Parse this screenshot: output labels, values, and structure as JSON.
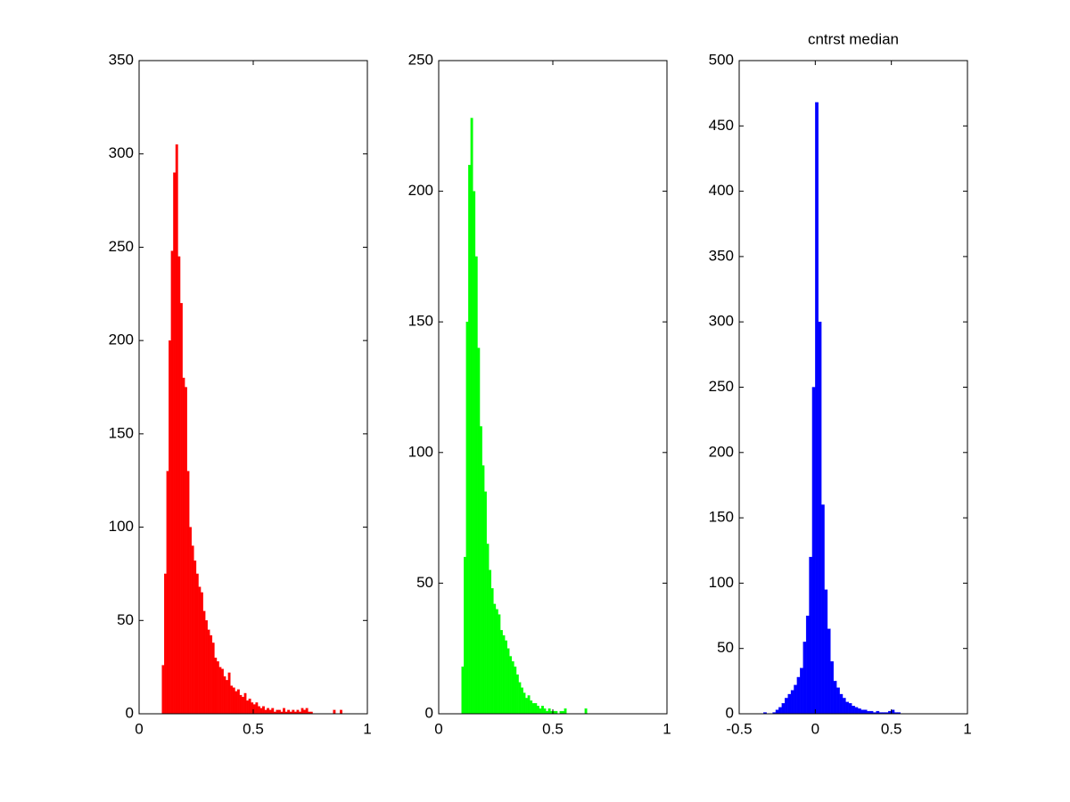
{
  "chart_data": [
    {
      "type": "histogram",
      "color": "#ff0000",
      "bins": [
        0.1,
        0.11,
        0.12,
        0.13,
        0.14,
        0.15,
        0.16,
        0.17,
        0.18,
        0.19,
        0.2,
        0.21,
        0.22,
        0.23,
        0.24,
        0.25,
        0.26,
        0.27,
        0.28,
        0.29,
        0.3,
        0.31,
        0.32,
        0.33,
        0.34,
        0.35,
        0.36,
        0.37,
        0.38,
        0.39,
        0.4,
        0.41,
        0.42,
        0.43,
        0.44,
        0.45,
        0.46,
        0.47,
        0.48,
        0.49,
        0.5,
        0.51,
        0.52,
        0.53,
        0.54,
        0.55,
        0.56,
        0.57,
        0.58,
        0.59,
        0.6,
        0.61,
        0.62,
        0.63,
        0.64,
        0.65,
        0.66,
        0.67,
        0.68,
        0.69,
        0.7,
        0.71,
        0.72,
        0.73,
        0.74,
        0.75,
        0.76,
        0.77,
        0.78,
        0.79,
        0.8,
        0.81,
        0.82,
        0.83,
        0.84,
        0.85,
        0.86,
        0.87,
        0.88,
        0.89,
        0.9
      ],
      "values": [
        26,
        75,
        130,
        200,
        248,
        290,
        305,
        245,
        220,
        180,
        175,
        130,
        100,
        90,
        82,
        75,
        68,
        65,
        55,
        50,
        45,
        42,
        38,
        30,
        28,
        25,
        24,
        20,
        18,
        22,
        15,
        14,
        12,
        13,
        10,
        9,
        11,
        7,
        8,
        6,
        5,
        6,
        4,
        3,
        4,
        2,
        3,
        2,
        3,
        1,
        2,
        2,
        1,
        3,
        1,
        2,
        1,
        2,
        1,
        2,
        1,
        3,
        2,
        3,
        1,
        1,
        0,
        0,
        0,
        0,
        0,
        0,
        0,
        0,
        0,
        2,
        0,
        0,
        2,
        0
      ],
      "xlim": [
        0,
        1
      ],
      "xticks": [
        0,
        0.5,
        1
      ],
      "ylim": [
        0,
        350
      ],
      "yticks": [
        0,
        50,
        100,
        150,
        200,
        250,
        300,
        350
      ]
    },
    {
      "type": "histogram",
      "color": "#00ff00",
      "bins": [
        0.1,
        0.11,
        0.12,
        0.13,
        0.14,
        0.15,
        0.16,
        0.17,
        0.18,
        0.19,
        0.2,
        0.21,
        0.22,
        0.23,
        0.24,
        0.25,
        0.26,
        0.27,
        0.28,
        0.29,
        0.3,
        0.31,
        0.32,
        0.33,
        0.34,
        0.35,
        0.36,
        0.37,
        0.38,
        0.39,
        0.4,
        0.41,
        0.42,
        0.43,
        0.44,
        0.45,
        0.46,
        0.47,
        0.48,
        0.49,
        0.5,
        0.51,
        0.52,
        0.53,
        0.54,
        0.55,
        0.56,
        0.57,
        0.58,
        0.59,
        0.6,
        0.61,
        0.62,
        0.63,
        0.64,
        0.65
      ],
      "values": [
        18,
        60,
        150,
        210,
        228,
        200,
        175,
        140,
        110,
        95,
        85,
        65,
        55,
        48,
        42,
        40,
        38,
        32,
        30,
        28,
        25,
        22,
        20,
        18,
        15,
        12,
        10,
        8,
        6,
        7,
        5,
        4,
        4,
        3,
        2,
        3,
        2,
        1,
        2,
        1,
        1,
        1,
        0,
        1,
        1,
        2,
        0,
        0,
        0,
        0,
        0,
        0,
        0,
        0,
        2
      ],
      "xlim": [
        0,
        1
      ],
      "xticks": [
        0,
        0.5,
        1
      ],
      "ylim": [
        0,
        250
      ],
      "yticks": [
        0,
        50,
        100,
        150,
        200,
        250
      ]
    },
    {
      "type": "histogram",
      "title": "cntrst median",
      "color": "#0000ff",
      "bins": [
        -0.34,
        -0.32,
        -0.3,
        -0.28,
        -0.26,
        -0.24,
        -0.22,
        -0.2,
        -0.18,
        -0.16,
        -0.14,
        -0.12,
        -0.1,
        -0.08,
        -0.06,
        -0.04,
        -0.02,
        0.0,
        0.02,
        0.04,
        0.06,
        0.08,
        0.1,
        0.12,
        0.14,
        0.16,
        0.18,
        0.2,
        0.22,
        0.24,
        0.26,
        0.28,
        0.3,
        0.32,
        0.34,
        0.36,
        0.38,
        0.4,
        0.42,
        0.44,
        0.46,
        0.48,
        0.5,
        0.52,
        0.54,
        0.56
      ],
      "values": [
        1,
        0,
        0,
        1,
        3,
        5,
        8,
        12,
        15,
        18,
        22,
        28,
        35,
        55,
        75,
        120,
        250,
        468,
        300,
        160,
        95,
        65,
        40,
        25,
        20,
        15,
        12,
        9,
        8,
        6,
        5,
        4,
        3,
        3,
        2,
        2,
        1,
        2,
        1,
        1,
        1,
        2,
        3,
        1,
        1
      ],
      "xlim": [
        -0.5,
        1
      ],
      "xticks": [
        -0.5,
        0,
        0.5,
        1
      ],
      "ylim": [
        0,
        500
      ],
      "yticks": [
        0,
        50,
        100,
        150,
        200,
        250,
        300,
        350,
        400,
        450,
        500
      ]
    }
  ]
}
